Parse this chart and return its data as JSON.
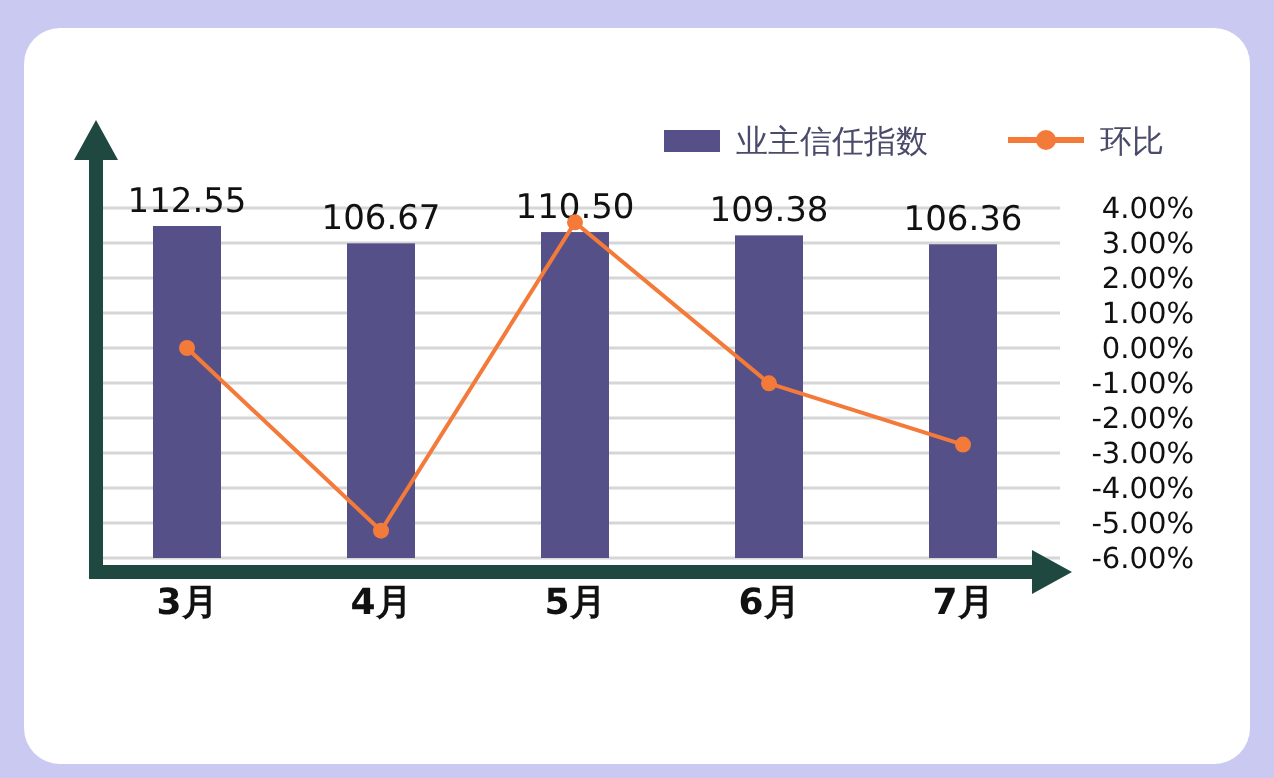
{
  "chart_data": {
    "type": "bar",
    "categories": [
      "3月",
      "4月",
      "5月",
      "6月",
      "7月"
    ],
    "series": [
      {
        "name": "业主信任指数",
        "color": "#565089",
        "values": [
          112.55,
          106.67,
          110.5,
          109.38,
          106.36
        ],
        "value_labels": [
          "112.55",
          "106.67",
          "110.50",
          "109.38",
          "106.36"
        ]
      },
      {
        "name": "环比",
        "type": "line",
        "axis": "y2",
        "color": "#f47a3a",
        "values": [
          0.0,
          -5.22,
          3.59,
          -1.01,
          -2.76
        ]
      }
    ],
    "y2lim": [
      -6,
      4
    ],
    "y2ticks": [
      {
        "value": 4,
        "label": "4.00%"
      },
      {
        "value": 3,
        "label": "3.00%"
      },
      {
        "value": 2,
        "label": "2.00%"
      },
      {
        "value": 1,
        "label": "1.00%"
      },
      {
        "value": 0,
        "label": "0.00%"
      },
      {
        "value": -1,
        "label": "-1.00%"
      },
      {
        "value": -2,
        "label": "-2.00%"
      },
      {
        "value": -3,
        "label": "-3.00%"
      },
      {
        "value": -4,
        "label": "-4.00%"
      },
      {
        "value": -5,
        "label": "-5.00%"
      },
      {
        "value": -6,
        "label": "-6.00%"
      }
    ],
    "grid": "y",
    "legend": "top right",
    "marker": "circle"
  }
}
